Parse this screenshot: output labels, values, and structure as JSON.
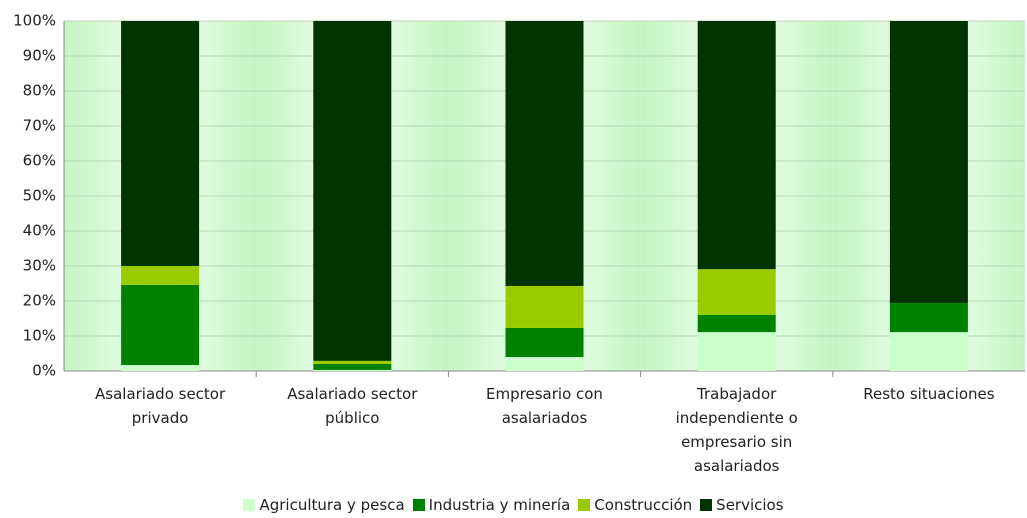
{
  "chart_data": {
    "type": "bar",
    "stacked": true,
    "categories": [
      "Asalariado sector privado",
      "Asalariado sector público",
      "Empresario con asalariados",
      "Trabajador independiente o empresario sin asalariados",
      "Resto situaciones"
    ],
    "series": [
      {
        "name": "Agricultura y pesca",
        "color": "#ccffcc",
        "values": [
          1.7,
          0.3,
          4.0,
          11.1,
          11.1
        ]
      },
      {
        "name": "Industria y minería",
        "color": "#008000",
        "values": [
          22.9,
          1.7,
          8.3,
          4.9,
          8.3
        ]
      },
      {
        "name": "Construcción",
        "color": "#99cc00",
        "values": [
          5.4,
          0.9,
          12.0,
          13.1,
          0.0
        ]
      },
      {
        "name": "Servicios",
        "color": "#003300",
        "values": [
          70.0,
          97.1,
          75.7,
          70.9,
          80.6
        ]
      }
    ],
    "ylim": [
      0,
      100
    ],
    "yticks": [
      {
        "value": 0,
        "label": "0%"
      },
      {
        "value": 10,
        "label": "10%"
      },
      {
        "value": 20,
        "label": "20%"
      },
      {
        "value": 30,
        "label": "30%"
      },
      {
        "value": 40,
        "label": "40%"
      },
      {
        "value": 50,
        "label": "50%"
      },
      {
        "value": 60,
        "label": "60%"
      },
      {
        "value": 70,
        "label": "70%"
      },
      {
        "value": 80,
        "label": "80%"
      },
      {
        "value": 90,
        "label": "90%"
      },
      {
        "value": 100,
        "label": "100%"
      }
    ],
    "grid": true,
    "legend": "bottom"
  }
}
